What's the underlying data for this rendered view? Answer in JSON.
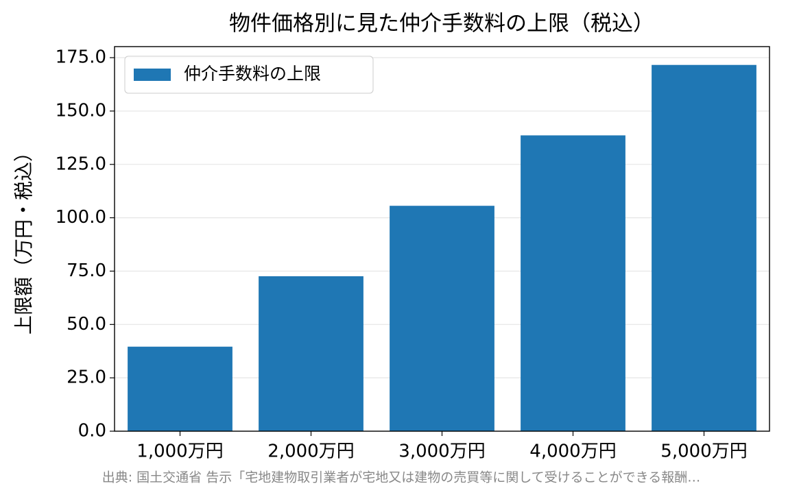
{
  "chart_data": {
    "type": "bar",
    "title": "物件価格別に見た仲介手数料の上限（税込）",
    "y_label": "上限額（万円・税込）",
    "categories": [
      "1,000万円",
      "2,000万円",
      "3,000万円",
      "4,000万円",
      "5,000万円"
    ],
    "series": [
      {
        "name": "仲介手数料の上限",
        "color": "#1f77b4",
        "values": [
          39.6,
          72.6,
          105.6,
          138.6,
          171.6
        ]
      }
    ],
    "ylim": [
      0,
      180.18
    ],
    "yticks": [
      {
        "value": 0,
        "label": "0.0"
      },
      {
        "value": 25,
        "label": "25.0"
      },
      {
        "value": 50,
        "label": "50.0"
      },
      {
        "value": 75,
        "label": "75.0"
      },
      {
        "value": 100,
        "label": "100.0"
      },
      {
        "value": 125,
        "label": "125.0"
      },
      {
        "value": 150,
        "label": "150.0"
      },
      {
        "value": 175,
        "label": "175.0"
      }
    ],
    "grid": true,
    "legend": "upper left",
    "source": "出典: 国土交通省 告示「宅地建物取引業者が宅地又は建物の売買等に関して受けることができる報酬…"
  }
}
